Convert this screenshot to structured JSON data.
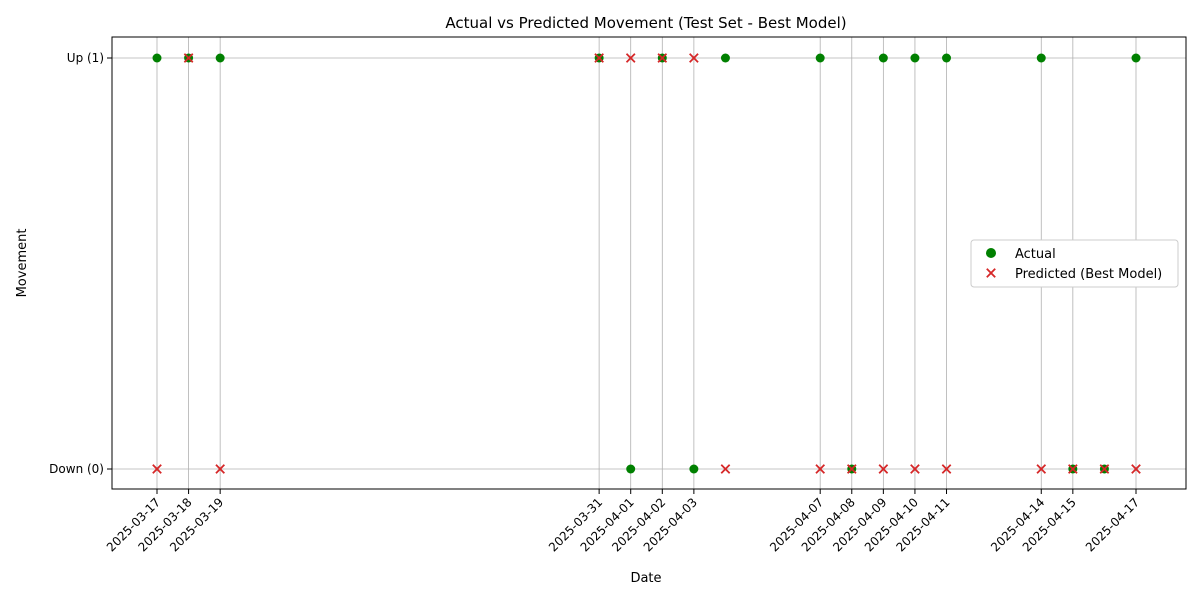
{
  "chart_data": {
    "type": "scatter",
    "title": "Actual vs Predicted Movement (Test Set - Best Model)",
    "xlabel": "Date",
    "ylabel": "Movement",
    "x_ticks": [
      "2025-03-17",
      "2025-03-18",
      "2025-03-19",
      "2025-03-31",
      "2025-04-01",
      "2025-04-02",
      "2025-04-03",
      "2025-04-07",
      "2025-04-08",
      "2025-04-09",
      "2025-04-10",
      "2025-04-11",
      "2025-04-14",
      "2025-04-15",
      "2025-04-17"
    ],
    "y_ticks": [
      {
        "value": 1,
        "label": "Up (1)"
      },
      {
        "value": 0,
        "label": "Down (0)"
      }
    ],
    "grid": true,
    "legend_position": "center-right",
    "x": [
      "2025-03-17",
      "2025-03-18",
      "2025-03-19",
      "2025-03-31",
      "2025-04-01",
      "2025-04-02",
      "2025-04-03",
      "2025-04-04",
      "2025-04-07",
      "2025-04-08",
      "2025-04-09",
      "2025-04-10",
      "2025-04-11",
      "2025-04-14",
      "2025-04-15",
      "2025-04-16",
      "2025-04-17"
    ],
    "series": [
      {
        "name": "Actual",
        "marker": "circle",
        "color": "#008000",
        "values": [
          1,
          1,
          1,
          1,
          0,
          1,
          0,
          1,
          1,
          0,
          1,
          1,
          1,
          1,
          0,
          0,
          1
        ]
      },
      {
        "name": "Predicted (Best Model)",
        "marker": "x",
        "color": "#d62728",
        "values": [
          0,
          1,
          0,
          1,
          1,
          1,
          1,
          0,
          0,
          0,
          0,
          0,
          0,
          0,
          0,
          0,
          0
        ]
      }
    ]
  }
}
